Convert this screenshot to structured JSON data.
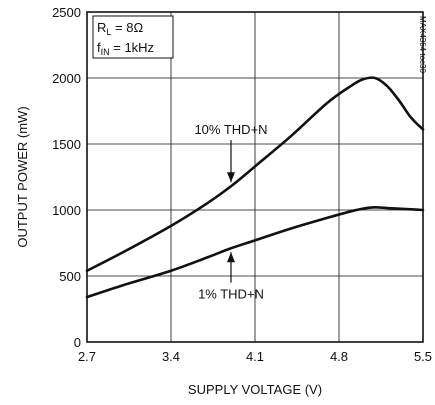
{
  "chart_data": {
    "type": "line",
    "xlabel": "SUPPLY VOLTAGE (V)",
    "ylabel": "OUTPUT POWER (mW)",
    "xlim": [
      2.7,
      5.5
    ],
    "ylim": [
      0,
      2500
    ],
    "xticks": [
      "2.7",
      "3.4",
      "4.1",
      "4.8",
      "5.5"
    ],
    "yticks": [
      "0",
      "500",
      "1000",
      "1500",
      "2000",
      "2500"
    ],
    "grid": true,
    "conditions": {
      "rl_prefix": "R",
      "rl_sub": "L",
      "rl_value": " = 8Ω",
      "fin_prefix": "f",
      "fin_sub": "IN",
      "fin_value": " = 1kHz"
    },
    "watermark": "MAX4364 toc30",
    "series": [
      {
        "name": "10% THD+N",
        "x": [
          2.7,
          3.0,
          3.4,
          3.7,
          3.9,
          4.1,
          4.4,
          4.7,
          4.9,
          5.0,
          5.1,
          5.2,
          5.3,
          5.4,
          5.5
        ],
        "values": [
          540,
          680,
          880,
          1050,
          1180,
          1330,
          1560,
          1810,
          1940,
          1990,
          2000,
          1940,
          1830,
          1700,
          1610
        ]
      },
      {
        "name": "1% THD+N",
        "x": [
          2.7,
          3.0,
          3.4,
          3.7,
          3.9,
          4.1,
          4.4,
          4.7,
          4.9,
          5.0,
          5.1,
          5.2,
          5.3,
          5.4,
          5.5
        ],
        "values": [
          340,
          430,
          540,
          640,
          710,
          770,
          860,
          940,
          990,
          1010,
          1020,
          1015,
          1010,
          1005,
          1000
        ]
      }
    ],
    "annotations": [
      {
        "text": "10% THD+N",
        "x": 3.9,
        "y": 1180,
        "arrow_from_y": 1530
      },
      {
        "text": "1% THD+N",
        "x": 3.9,
        "y": 710,
        "arrow_from_y": 450
      }
    ]
  }
}
